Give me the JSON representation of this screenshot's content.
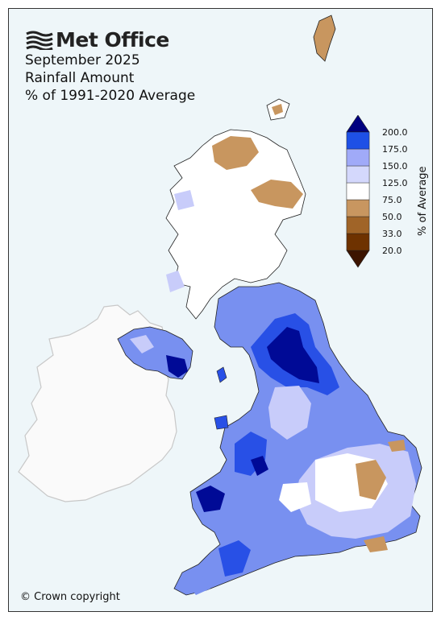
{
  "logo": {
    "name": "Met Office",
    "icon": "met-office-waves-icon"
  },
  "title_lines": [
    "September 2025",
    "Rainfall Amount",
    "% of 1991-2020 Average"
  ],
  "legend": {
    "axis_label": "% of Average",
    "tick_labels": [
      "200.0",
      "175.0",
      "150.0",
      "125.0",
      "75.0",
      "50.0",
      "33.0",
      "20.0"
    ],
    "colors": [
      "#000080",
      "#1e50e6",
      "#5a78f0",
      "#a0aaf8",
      "#d4d8fc",
      "#ffffff",
      "#c89660",
      "#a06428",
      "#6e3200",
      "#3c1400"
    ]
  },
  "copyright": "© Crown copyright",
  "colors": {
    "background": "#eef6f9",
    "ireland_fill": "#fafafa",
    "very_wet": "#000a96",
    "wet": "#2850e6",
    "moderately_wet": "#7890f0",
    "slightly_wet": "#c8ccfa",
    "average": "#ffffff",
    "dry": "#c8965f"
  }
}
